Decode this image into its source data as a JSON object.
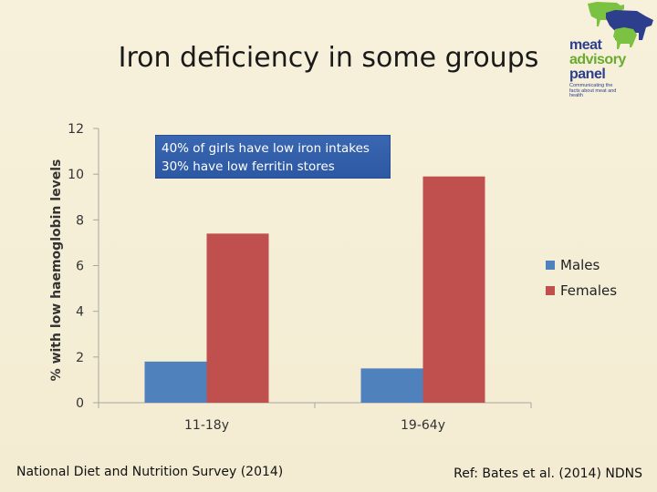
{
  "slide": {
    "title": "Iron deficiency in some groups",
    "callout": [
      "40% of girls have low iron intakes",
      "30% have low ferritin stores"
    ],
    "footer_left": "National Diet and Nutrition Survey (2014)",
    "footer_right": "Ref: Bates et al. (2014) NDNS"
  },
  "logo": {
    "line1": "meat",
    "line2": "advisory",
    "line3": "panel",
    "tagline": "Communicating the facts about meat and health",
    "colors": {
      "navy": "#2c3e8c",
      "green": "#6aaa2e",
      "cow": "#7cc242",
      "pig": "#2c3e8c"
    }
  },
  "chart_data": {
    "type": "bar",
    "categories": [
      "11-18y",
      "19-64y"
    ],
    "series": [
      {
        "name": "Males",
        "values": [
          1.8,
          1.5
        ],
        "color": "#4f81bd"
      },
      {
        "name": "Females",
        "values": [
          7.4,
          9.9
        ],
        "color": "#c0504d"
      }
    ],
    "ylabel": "% with low haemoglobin levels",
    "ylim": [
      0,
      12
    ],
    "yticks": [
      0,
      2,
      4,
      6,
      8,
      10,
      12
    ],
    "grid": false,
    "legend_position": "right"
  }
}
